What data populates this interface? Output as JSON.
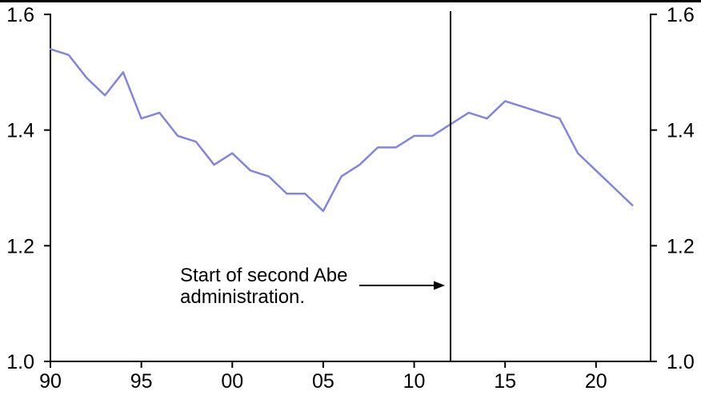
{
  "chart_data": {
    "type": "line",
    "x": [
      1990,
      1991,
      1992,
      1993,
      1994,
      1995,
      1996,
      1997,
      1998,
      1999,
      2000,
      2001,
      2002,
      2003,
      2004,
      2005,
      2006,
      2007,
      2008,
      2009,
      2010,
      2011,
      2012,
      2013,
      2014,
      2015,
      2016,
      2017,
      2018,
      2019,
      2020,
      2021,
      2022
    ],
    "series": [
      {
        "name": "",
        "values": [
          1.54,
          1.53,
          1.49,
          1.46,
          1.5,
          1.42,
          1.43,
          1.39,
          1.38,
          1.34,
          1.36,
          1.33,
          1.32,
          1.29,
          1.29,
          1.26,
          1.32,
          1.34,
          1.37,
          1.37,
          1.39,
          1.39,
          1.41,
          1.43,
          1.42,
          1.45,
          1.44,
          1.43,
          1.42,
          1.36,
          1.33,
          1.3,
          1.27
        ]
      }
    ],
    "xlim": [
      1990,
      2023
    ],
    "ylim": [
      1.0,
      1.6
    ],
    "x_tick_years": [
      1990,
      1995,
      2000,
      2005,
      2010,
      2015,
      2020
    ],
    "x_tick_labels": [
      "90",
      "95",
      "00",
      "05",
      "10",
      "15",
      "20"
    ],
    "y_ticks": [
      1.0,
      1.2,
      1.4,
      1.6
    ],
    "y_tick_labels": [
      "1.0",
      "1.2",
      "1.4",
      "1.6"
    ],
    "grid": false,
    "legend": false,
    "line_color": "#8383e3",
    "axis_color": "#000000",
    "background_color": "#ffffff",
    "annotation": {
      "line1": "Start of second Abe",
      "line2": "administration.",
      "full_text": "Start of second Abe administration.",
      "event_year": 2012
    }
  }
}
